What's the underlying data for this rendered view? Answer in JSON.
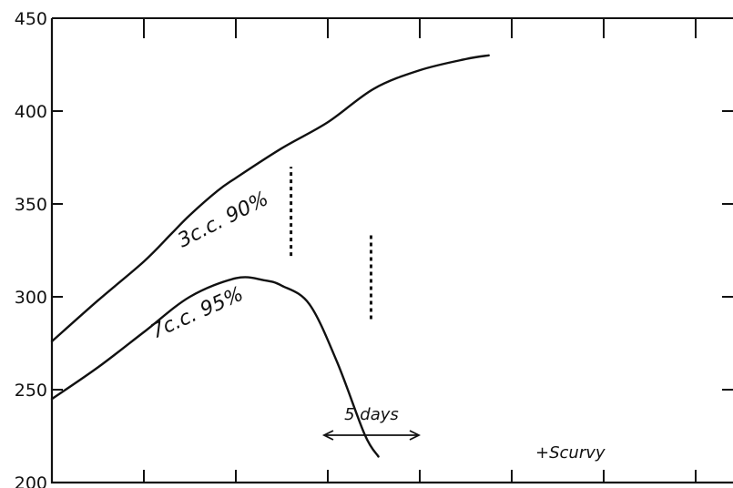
{
  "chart_data": {
    "type": "line",
    "title": "",
    "xlabel": "",
    "ylabel": "",
    "ylim": [
      200,
      450
    ],
    "y_ticks": [
      "450",
      "400",
      "350",
      "300",
      "250",
      "200"
    ],
    "x_tick_count": 8,
    "x_unit_label": "5 days",
    "grid": false,
    "series": [
      {
        "name": "3c.c. 90%",
        "marker_y": [
          322,
          370
        ],
        "values": [
          [
            0.0,
            276
          ],
          [
            0.5,
            298
          ],
          [
            1.0,
            319
          ],
          [
            1.3,
            334
          ],
          [
            1.5,
            344
          ],
          [
            1.8,
            357
          ],
          [
            2.0,
            364
          ],
          [
            2.5,
            380
          ],
          [
            3.0,
            394
          ],
          [
            3.5,
            412
          ],
          [
            4.0,
            422
          ],
          [
            4.5,
            428
          ],
          [
            4.75,
            430
          ]
        ]
      },
      {
        "name": "7c.c. 95%",
        "marker_y": [
          288,
          334
        ],
        "values": [
          [
            0.0,
            245
          ],
          [
            0.5,
            262
          ],
          [
            1.0,
            281
          ],
          [
            1.5,
            300
          ],
          [
            2.0,
            310
          ],
          [
            2.3,
            309
          ],
          [
            2.5,
            306
          ],
          [
            2.8,
            296
          ],
          [
            3.1,
            265
          ],
          [
            3.4,
            226
          ],
          [
            3.55,
            214
          ]
        ]
      }
    ],
    "annotations": {
      "end_marker": "+Scurvy"
    }
  }
}
